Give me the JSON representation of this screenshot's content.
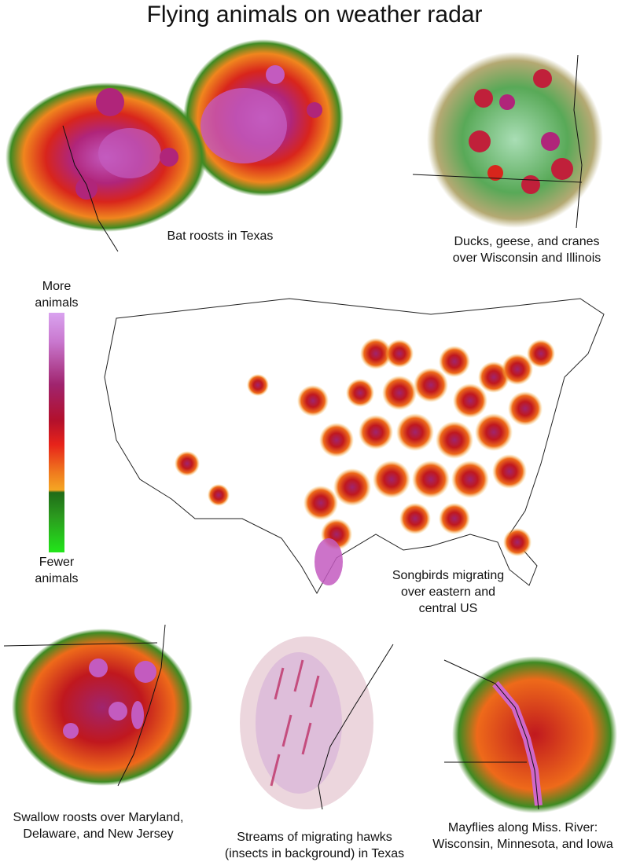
{
  "title": "Flying animals on weather radar",
  "panels": {
    "bats": "Bat roosts in Texas",
    "waterfowl": [
      "Ducks, geese, and cranes",
      "over Wisconsin and Illinois"
    ],
    "songbirds": [
      "Songbirds migrating",
      "over eastern and",
      "central US"
    ],
    "swallows": [
      "Swallow roosts over Maryland,",
      "Delaware, and New Jersey"
    ],
    "hawks": [
      "Streams of migrating hawks",
      "(insects in background) in Texas"
    ],
    "mayflies": [
      "Mayflies along Miss. River:",
      "Wisconsin, Minnesota, and Iowa"
    ]
  },
  "legend": {
    "top": [
      "More",
      "animals"
    ],
    "bottom": [
      "Fewer",
      "animals"
    ],
    "colors": [
      "#d9a3ef",
      "#a0246e",
      "#e7231a",
      "#f5a623",
      "#1f6b18",
      "#22e61a"
    ]
  }
}
